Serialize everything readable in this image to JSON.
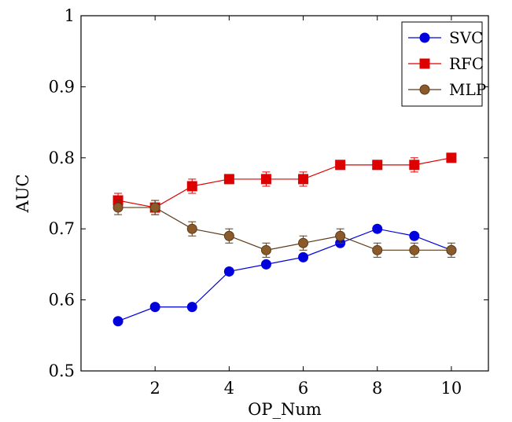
{
  "chart_data": {
    "type": "line",
    "title": "",
    "xlabel": "OP_Num",
    "ylabel": "AUC",
    "xlim": [
      0,
      11
    ],
    "ylim": [
      0.5,
      1.0
    ],
    "x_ticks": [
      2,
      4,
      6,
      8,
      10
    ],
    "y_ticks": [
      0.5,
      0.6,
      0.7,
      0.8,
      0.9,
      1.0
    ],
    "x_tick_labels": [
      "2",
      "4",
      "6",
      "8",
      "10"
    ],
    "y_tick_labels": [
      "0.5",
      "0.6",
      "0.7",
      "0.8",
      "0.9",
      "1"
    ],
    "grid": false,
    "legend_position": "top-right",
    "x": [
      1,
      2,
      3,
      4,
      5,
      6,
      7,
      8,
      9,
      10
    ],
    "series": [
      {
        "name": "SVC",
        "color": "#0000dd",
        "marker": "circle",
        "values": [
          0.57,
          0.59,
          0.59,
          0.64,
          0.65,
          0.66,
          0.68,
          0.7,
          0.69,
          0.67
        ],
        "errors": null
      },
      {
        "name": "RFC",
        "color": "#dd0000",
        "marker": "square",
        "values": [
          0.74,
          0.73,
          0.76,
          0.77,
          0.77,
          0.77,
          0.79,
          0.79,
          0.79,
          0.8
        ],
        "errors": [
          0.01,
          0.01,
          0.01,
          0.0,
          0.01,
          0.01,
          0.0,
          0.0,
          0.01,
          0.0
        ]
      },
      {
        "name": "MLP",
        "color": "#8b5a2b",
        "edge_color": "#5c3a17",
        "marker": "circle",
        "values": [
          0.73,
          0.73,
          0.7,
          0.69,
          0.67,
          0.68,
          0.69,
          0.67,
          0.67,
          0.67
        ],
        "errors": [
          0.01,
          0.01,
          0.01,
          0.01,
          0.01,
          0.01,
          0.01,
          0.01,
          0.01,
          0.01
        ]
      }
    ]
  }
}
